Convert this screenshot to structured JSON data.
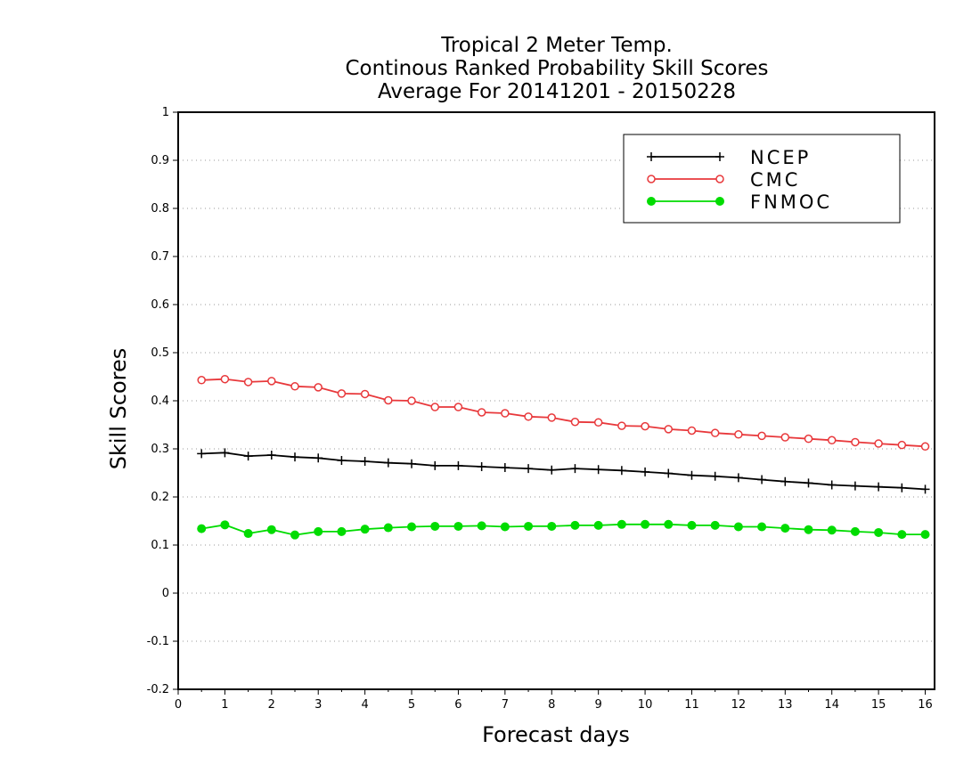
{
  "chart_data": {
    "type": "line",
    "title_lines": [
      "Tropical 2 Meter Temp.",
      "Continous Ranked Probability Skill Scores",
      "Average For 20141201 - 20150228"
    ],
    "xlabel": "Forecast days",
    "ylabel": "Skill Scores",
    "xlim": [
      0,
      16.2
    ],
    "ylim": [
      -0.2,
      1
    ],
    "x_ticks": [
      0,
      1,
      2,
      3,
      4,
      5,
      6,
      7,
      8,
      9,
      10,
      11,
      12,
      13,
      14,
      15,
      16
    ],
    "y_ticks": [
      -0.2,
      -0.1,
      0,
      0.1,
      0.2,
      0.3,
      0.4,
      0.5,
      0.6,
      0.7,
      0.8,
      0.9,
      1
    ],
    "y_tick_labels": [
      "-0.2",
      "-0.1",
      "0",
      "0.1",
      "0.2",
      "0.3",
      "0.4",
      "0.5",
      "0.6",
      "0.7",
      "0.8",
      "0.9",
      "1"
    ],
    "grid": "horizontal dotted",
    "legend_position": "top-right",
    "x": [
      0.5,
      1,
      1.5,
      2,
      2.5,
      3,
      3.5,
      4,
      4.5,
      5,
      5.5,
      6,
      6.5,
      7,
      7.5,
      8,
      8.5,
      9,
      9.5,
      10,
      10.5,
      11,
      11.5,
      12,
      12.5,
      13,
      13.5,
      14,
      14.5,
      15,
      15.5,
      16
    ],
    "series": [
      {
        "name": "NCEP",
        "color": "#000000",
        "marker": "plus",
        "values": [
          0.29,
          0.292,
          0.285,
          0.287,
          0.283,
          0.281,
          0.276,
          0.274,
          0.271,
          0.269,
          0.265,
          0.265,
          0.263,
          0.261,
          0.259,
          0.256,
          0.259,
          0.257,
          0.255,
          0.252,
          0.249,
          0.245,
          0.243,
          0.24,
          0.236,
          0.232,
          0.229,
          0.225,
          0.223,
          0.221,
          0.219,
          0.216
        ]
      },
      {
        "name": "CMC",
        "color": "#e8383b",
        "marker": "open-circle",
        "values": [
          0.443,
          0.445,
          0.439,
          0.441,
          0.43,
          0.428,
          0.415,
          0.414,
          0.401,
          0.4,
          0.387,
          0.387,
          0.376,
          0.374,
          0.367,
          0.365,
          0.356,
          0.355,
          0.348,
          0.347,
          0.341,
          0.338,
          0.333,
          0.33,
          0.327,
          0.324,
          0.321,
          0.318,
          0.314,
          0.311,
          0.308,
          0.305
        ]
      },
      {
        "name": "FNMOC",
        "color": "#00dc00",
        "marker": "filled-circle",
        "values": [
          0.134,
          0.142,
          0.124,
          0.132,
          0.121,
          0.128,
          0.128,
          0.133,
          0.136,
          0.138,
          0.139,
          0.139,
          0.14,
          0.138,
          0.139,
          0.139,
          0.141,
          0.141,
          0.143,
          0.143,
          0.143,
          0.141,
          0.141,
          0.138,
          0.138,
          0.135,
          0.132,
          0.131,
          0.128,
          0.126,
          0.122,
          0.122
        ]
      }
    ]
  }
}
